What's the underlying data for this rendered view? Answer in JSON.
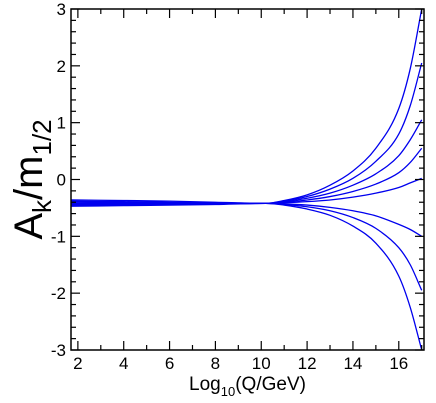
{
  "chart_data": {
    "type": "line",
    "xlabel": {
      "base": "Log",
      "subscript": "10",
      "rest": "(Q/GeV)"
    },
    "ylabel": {
      "base": "A",
      "subscript_k": "k",
      "slash": "/m",
      "subscript_half": "1/2"
    },
    "xlim": [
      1.7,
      17.1
    ],
    "ylim": [
      -3,
      3
    ],
    "xticks": [
      2,
      4,
      6,
      8,
      10,
      12,
      14,
      16
    ],
    "xtick_labels": [
      "2",
      "4",
      "6",
      "8",
      "10",
      "12",
      "14",
      "16"
    ],
    "yticks": [
      -3,
      -2,
      -1,
      0,
      1,
      2,
      3
    ],
    "ytick_labels": [
      "-3",
      "-2",
      "-1",
      "0",
      "1",
      "2",
      "3"
    ],
    "grid": false,
    "line_color": "#0000ee",
    "series": [
      {
        "x": [
          1.7,
          4,
          6,
          8,
          10.2,
          11,
          12,
          13,
          14,
          15,
          16,
          16.5,
          17.0
        ],
        "values": [
          -0.36,
          -0.37,
          -0.38,
          -0.4,
          -0.42,
          -0.37,
          -0.27,
          -0.1,
          0.15,
          0.55,
          1.25,
          1.95,
          3.0
        ]
      },
      {
        "x": [
          1.7,
          4,
          6,
          8,
          10.2,
          11,
          12,
          13,
          14,
          15,
          16,
          16.5,
          17.0
        ],
        "values": [
          -0.38,
          -0.39,
          -0.4,
          -0.41,
          -0.42,
          -0.38,
          -0.3,
          -0.17,
          0.02,
          0.32,
          0.8,
          1.3,
          2.05
        ]
      },
      {
        "x": [
          1.7,
          4,
          6,
          8,
          10.2,
          11,
          12,
          13,
          14,
          15,
          16,
          16.5,
          17.0
        ],
        "values": [
          -0.39,
          -0.4,
          -0.41,
          -0.41,
          -0.42,
          -0.39,
          -0.33,
          -0.24,
          -0.1,
          0.1,
          0.42,
          0.7,
          1.05
        ]
      },
      {
        "x": [
          1.7,
          4,
          6,
          8,
          10.2,
          11,
          12,
          13,
          14,
          15,
          16,
          16.5,
          17.0
        ],
        "values": [
          -0.41,
          -0.41,
          -0.42,
          -0.42,
          -0.42,
          -0.4,
          -0.36,
          -0.3,
          -0.21,
          -0.08,
          0.12,
          0.3,
          0.55
        ]
      },
      {
        "x": [
          1.7,
          4,
          6,
          8,
          10.2,
          11,
          12,
          13,
          14,
          15,
          16,
          16.5,
          17.0
        ],
        "values": [
          -0.42,
          -0.42,
          -0.42,
          -0.42,
          -0.42,
          -0.41,
          -0.39,
          -0.36,
          -0.31,
          -0.24,
          -0.14,
          -0.06,
          0.02
        ]
      },
      {
        "x": [
          1.7,
          4,
          6,
          8,
          10.2,
          11,
          12,
          13,
          14,
          15,
          16,
          16.5,
          17.0
        ],
        "values": [
          -0.44,
          -0.44,
          -0.43,
          -0.43,
          -0.42,
          -0.43,
          -0.45,
          -0.49,
          -0.55,
          -0.64,
          -0.79,
          -0.88,
          -1.0
        ]
      },
      {
        "x": [
          1.7,
          4,
          6,
          8,
          10.2,
          11,
          12,
          13,
          14,
          15,
          16,
          16.5,
          17.0
        ],
        "values": [
          -0.45,
          -0.45,
          -0.44,
          -0.43,
          -0.42,
          -0.44,
          -0.48,
          -0.55,
          -0.67,
          -0.86,
          -1.2,
          -1.5,
          -1.95
        ]
      },
      {
        "x": [
          1.7,
          4,
          6,
          8,
          10.2,
          11,
          12,
          13,
          14,
          15,
          16,
          16.5,
          17.0
        ],
        "values": [
          -0.47,
          -0.46,
          -0.45,
          -0.44,
          -0.42,
          -0.45,
          -0.52,
          -0.63,
          -0.82,
          -1.12,
          -1.7,
          -2.25,
          -3.0
        ]
      }
    ]
  }
}
